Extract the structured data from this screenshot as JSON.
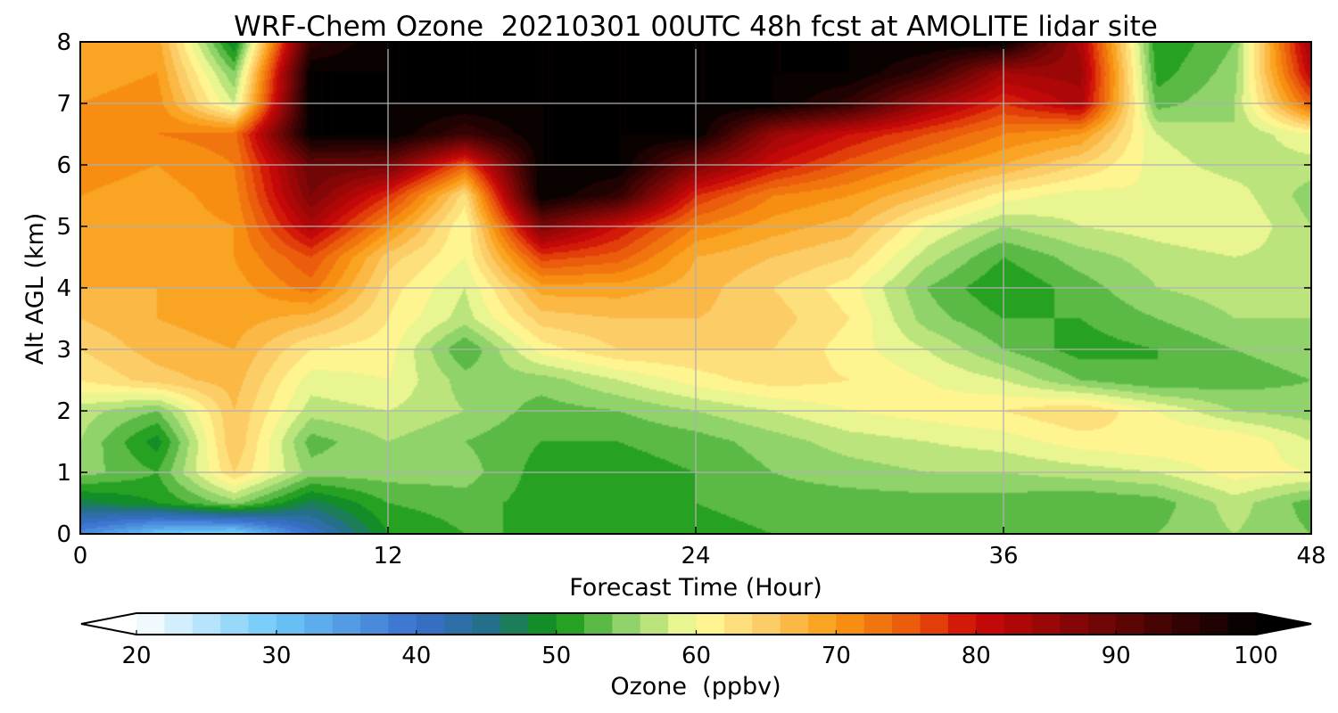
{
  "chart_data": {
    "type": "heatmap",
    "title": "WRF-Chem Ozone  20210301 00UTC 48h fcst at AMOLITE lidar site",
    "xlabel": "Forecast Time (Hour)",
    "ylabel": "Alt AGL (km)",
    "xlim": [
      0,
      48
    ],
    "ylim": [
      0,
      8
    ],
    "xticks": [
      "0",
      "12",
      "24",
      "36",
      "48"
    ],
    "yticks": [
      "0",
      "1",
      "2",
      "3",
      "4",
      "5",
      "6",
      "7",
      "8"
    ],
    "grid": true,
    "x_hours": [
      0,
      3,
      6,
      9,
      12,
      15,
      18,
      21,
      24,
      27,
      30,
      33,
      36,
      39,
      42,
      45,
      48
    ],
    "y_km": [
      0,
      0.5,
      1,
      1.5,
      2,
      2.5,
      3,
      3.5,
      4,
      4.5,
      5,
      5.5,
      6,
      6.5,
      7,
      7.5,
      8
    ],
    "z_ozone_ppbv": [
      [
        37,
        30,
        28,
        40,
        50,
        52,
        52,
        51,
        51,
        52,
        53,
        53,
        54,
        52,
        54,
        56,
        54
      ],
      [
        47,
        50,
        55,
        47,
        52,
        53,
        51,
        51,
        52,
        53,
        53,
        53,
        53,
        52,
        53,
        57,
        53
      ],
      [
        55,
        52,
        64,
        55,
        55,
        55,
        51,
        51,
        52,
        54,
        55,
        56,
        56,
        57,
        58,
        61,
        60
      ],
      [
        56,
        49,
        66,
        53,
        56,
        54,
        52,
        52,
        53,
        55,
        57,
        58,
        59,
        61,
        62,
        62,
        58
      ],
      [
        57,
        54,
        66,
        57,
        58,
        56,
        53,
        54,
        56,
        58,
        60,
        61,
        62,
        64,
        60,
        56,
        55
      ],
      [
        62,
        65,
        67,
        59,
        60,
        55,
        55,
        58,
        61,
        63,
        62,
        60,
        58,
        54,
        52,
        53,
        54
      ],
      [
        64,
        67,
        68,
        62,
        61,
        52,
        61,
        64,
        64,
        64,
        61,
        58,
        54,
        51,
        52,
        54,
        55
      ],
      [
        66,
        68,
        69,
        67,
        62,
        57,
        65,
        66,
        66,
        65,
        62,
        55,
        52,
        52,
        54,
        56,
        56
      ],
      [
        68,
        68,
        69,
        73,
        63,
        58,
        69,
        69,
        67,
        64,
        61,
        54,
        50,
        53,
        56,
        57,
        57
      ],
      [
        69,
        69,
        70,
        76,
        65,
        60,
        77,
        75,
        68,
        66,
        64,
        57,
        52,
        55,
        57,
        58,
        57
      ],
      [
        70,
        69,
        70,
        83,
        71,
        60,
        88,
        80,
        72,
        69,
        67,
        60,
        56,
        58,
        59,
        60,
        56
      ],
      [
        70,
        69,
        71,
        88,
        78,
        63,
        100,
        95,
        78,
        72,
        70,
        66,
        61,
        59,
        60,
        59,
        55
      ],
      [
        71,
        70,
        72,
        90,
        89,
        75,
        100,
        100,
        88,
        80,
        75,
        71,
        68,
        64,
        59,
        57,
        57
      ],
      [
        71,
        72,
        73,
        100,
        100,
        94,
        100,
        100,
        100,
        85,
        80,
        76,
        72,
        70,
        58,
        56,
        60
      ],
      [
        70,
        71,
        58,
        100,
        100,
        100,
        100,
        100,
        100,
        100,
        95,
        85,
        78,
        83,
        53,
        56,
        75
      ],
      [
        69,
        70,
        54,
        100,
        100,
        100,
        100,
        100,
        100,
        100,
        100,
        95,
        84,
        85,
        51,
        55,
        82
      ],
      [
        68,
        69,
        48,
        95,
        100,
        100,
        100,
        100,
        100,
        100,
        100,
        100,
        100,
        83,
        50,
        54,
        85
      ]
    ],
    "colorbar": {
      "label": "Ozone  (ppbv)",
      "min": 20,
      "max": 100,
      "step": 2,
      "ticks": [
        "20",
        "30",
        "40",
        "50",
        "60",
        "70",
        "80",
        "90",
        "100"
      ],
      "extend": "both",
      "stops": [
        {
          "v": 20,
          "c": "#ffffff"
        },
        {
          "v": 30,
          "c": "#6cc8f8"
        },
        {
          "v": 40,
          "c": "#3a6fcf"
        },
        {
          "v": 45,
          "c": "#246f8a"
        },
        {
          "v": 50,
          "c": "#0d9410"
        },
        {
          "v": 55,
          "c": "#8fd36a"
        },
        {
          "v": 60,
          "c": "#fffe9a"
        },
        {
          "v": 65,
          "c": "#fccc66"
        },
        {
          "v": 70,
          "c": "#fa9a14"
        },
        {
          "v": 76,
          "c": "#e8500a"
        },
        {
          "v": 80,
          "c": "#cc0808"
        },
        {
          "v": 88,
          "c": "#7a0606"
        },
        {
          "v": 100,
          "c": "#000000"
        }
      ]
    }
  }
}
